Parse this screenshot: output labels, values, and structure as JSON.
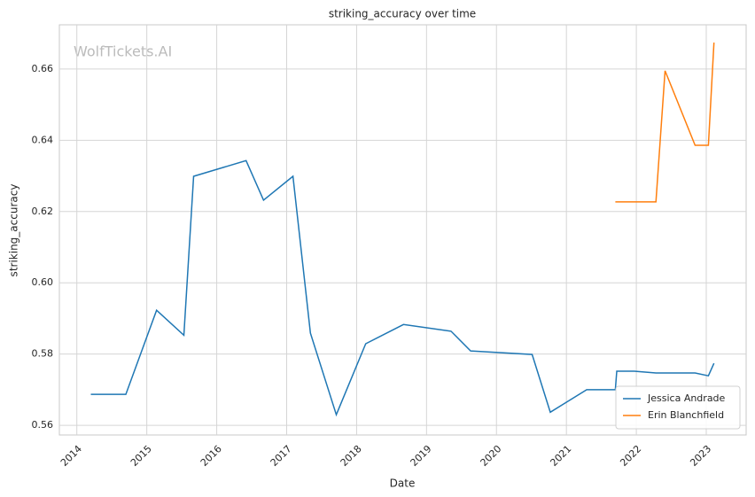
{
  "chart_data": {
    "type": "line",
    "title": "striking_accuracy over time",
    "xlabel": "Date",
    "ylabel": "striking_accuracy",
    "watermark": "WolfTickets.AI",
    "xlim": [
      2013.75,
      2023.57
    ],
    "ylim": [
      0.5573,
      0.6724
    ],
    "xticks": [
      2014,
      2015,
      2016,
      2017,
      2018,
      2019,
      2020,
      2021,
      2022,
      2023
    ],
    "yticks": [
      0.56,
      0.58,
      {
        "value": 0.6,
        "label": "0.60"
      },
      0.62,
      0.64,
      0.66
    ],
    "grid": true,
    "legend": "lower right",
    "series": [
      {
        "name": "Jessica Andrade",
        "color": "#1f77b4",
        "x": [
          2014.2,
          2014.7,
          2015.14,
          2015.53,
          2015.67,
          2016.42,
          2016.67,
          2017.09,
          2017.34,
          2017.71,
          2018.13,
          2018.67,
          2019.35,
          2019.63,
          2020.51,
          2020.77,
          2021.29,
          2021.7,
          2021.72,
          2021.97,
          2022.28,
          2022.84,
          2023.03,
          2023.11
        ],
        "values": [
          0.5687,
          0.5687,
          0.5923,
          0.5853,
          0.6299,
          0.6343,
          0.6232,
          0.6299,
          0.5859,
          0.563,
          0.5829,
          0.5883,
          0.5864,
          0.5809,
          0.5799,
          0.5637,
          0.57,
          0.57,
          0.5752,
          0.5752,
          0.5747,
          0.5747,
          0.5739,
          0.5774
        ]
      },
      {
        "name": "Erin Blanchfield",
        "color": "#ff7f0e",
        "x": [
          2021.7,
          2022.28,
          2022.41,
          2022.84,
          2023.03,
          2023.11
        ],
        "values": [
          0.6227,
          0.6227,
          0.6595,
          0.6386,
          0.6386,
          0.6674
        ]
      }
    ]
  }
}
